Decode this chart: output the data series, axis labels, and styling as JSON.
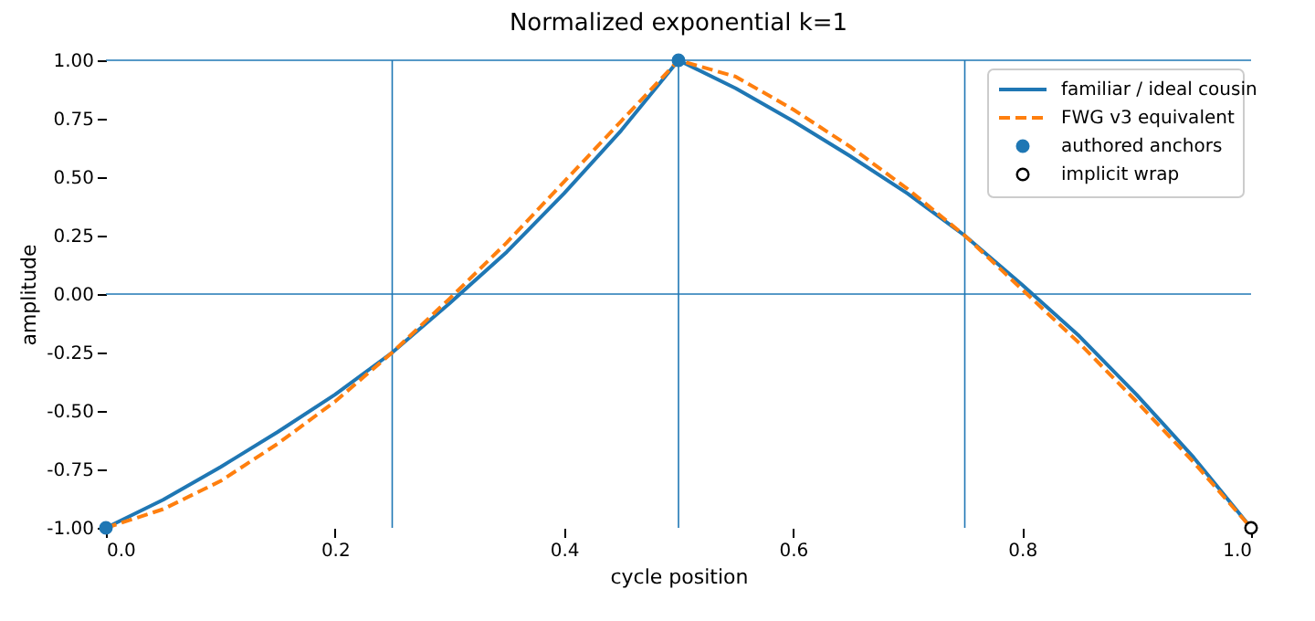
{
  "chart_data": {
    "type": "line",
    "title": "Normalized exponential k=1",
    "xlabel": "cycle position",
    "ylabel": "amplitude",
    "xlim": [
      0,
      1
    ],
    "ylim": [
      -1,
      1
    ],
    "xticks": [
      {
        "value": 0,
        "label": "0.0"
      },
      {
        "value": 0.2,
        "label": "0.2"
      },
      {
        "value": 0.4,
        "label": "0.4"
      },
      {
        "value": 0.6,
        "label": "0.6"
      },
      {
        "value": 0.8,
        "label": "0.8"
      },
      {
        "value": 1,
        "label": "1.0"
      }
    ],
    "yticks": [
      {
        "value": -1,
        "label": "-1.00"
      },
      {
        "value": -0.75,
        "label": "-0.75"
      },
      {
        "value": -0.5,
        "label": "-0.50"
      },
      {
        "value": -0.25,
        "label": "-0.25"
      },
      {
        "value": 0,
        "label": "0.00"
      },
      {
        "value": 0.25,
        "label": "0.25"
      },
      {
        "value": 0.5,
        "label": "0.50"
      },
      {
        "value": 0.75,
        "label": "0.75"
      },
      {
        "value": 1,
        "label": "1.00"
      }
    ],
    "grid": false,
    "legend": "top right",
    "x": [
      0,
      0.05,
      0.1,
      0.15,
      0.2,
      0.25,
      0.3,
      0.35,
      0.4,
      0.45,
      0.5,
      0.55,
      0.6,
      0.65,
      0.7,
      0.75,
      0.8,
      0.85,
      0.9,
      0.95,
      1
    ],
    "series": [
      {
        "name": "familiar / ideal cousin",
        "line_style": "solid",
        "color": "#1f77b4",
        "values": [
          -1,
          -0.88,
          -0.74,
          -0.59,
          -0.43,
          -0.25,
          -0.04,
          0.18,
          0.43,
          0.7,
          1,
          0.88,
          0.74,
          0.59,
          0.43,
          0.25,
          0.04,
          -0.18,
          -0.43,
          -0.7,
          -1
        ]
      },
      {
        "name": "FWG v3 equivalent",
        "line_style": "dashed",
        "color": "#ff7f0e",
        "values": [
          -1,
          -0.92,
          -0.8,
          -0.64,
          -0.46,
          -0.25,
          -0.02,
          0.22,
          0.48,
          0.74,
          1,
          0.93,
          0.79,
          0.63,
          0.45,
          0.25,
          0.02,
          -0.21,
          -0.46,
          -0.72,
          -1
        ]
      },
      {
        "name": "authored anchors",
        "type": "scatter",
        "marker": "circle",
        "color": "#1f77b4",
        "x": [
          0,
          0.5
        ],
        "values": [
          -1,
          1
        ]
      },
      {
        "name": "implicit wrap",
        "type": "scatter",
        "marker": "circle",
        "color": "#000000",
        "x": [
          1
        ],
        "values": [
          -1
        ]
      }
    ],
    "ref_lines": [
      {
        "axis": "x",
        "value": 0.25,
        "color": "#1f77b4"
      },
      {
        "axis": "x",
        "value": 0.5,
        "color": "#1f77b4"
      },
      {
        "axis": "x",
        "value": 0.75,
        "color": "#1f77b4"
      },
      {
        "axis": "y",
        "value": 0,
        "color": "#1f77b4"
      },
      {
        "axis": "y",
        "value": 1,
        "color": "#1f77b4"
      }
    ]
  }
}
